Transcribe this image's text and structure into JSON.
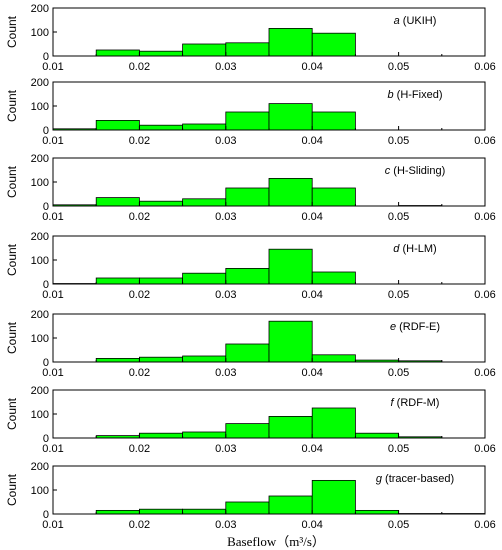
{
  "figure": {
    "xlabel": "Baseflow（m³/s）",
    "bar_color": "#00ff00",
    "edge_color": "#000000"
  },
  "chart_data": [
    {
      "type": "bar",
      "panel_letter": "a",
      "label_rest": " (UKIH)",
      "ylabel": "Count",
      "bin_edges": [
        0.015,
        0.02,
        0.025,
        0.03,
        0.035,
        0.04,
        0.045,
        0.05,
        0.055
      ],
      "values": [
        25,
        20,
        50,
        55,
        115,
        95,
        0,
        0
      ],
      "xlim": [
        0.01,
        0.06
      ],
      "ylim": [
        0,
        200
      ],
      "xticks": [
        "0.01",
        "0.02",
        "0.03",
        "0.04",
        "0.05",
        "0.06"
      ],
      "yticks": [
        "0",
        "100",
        "200"
      ]
    },
    {
      "type": "bar",
      "panel_letter": "b",
      "label_rest": " (H-Fixed)",
      "ylabel": "Count",
      "bin_edges": [
        0.01,
        0.015,
        0.02,
        0.025,
        0.03,
        0.035,
        0.04,
        0.045
      ],
      "values": [
        5,
        40,
        20,
        25,
        75,
        110,
        75
      ],
      "xlim": [
        0.01,
        0.06
      ],
      "ylim": [
        0,
        200
      ],
      "xticks": [
        "0.01",
        "0.02",
        "0.03",
        "0.04",
        "0.05",
        "0.06"
      ],
      "yticks": [
        "0",
        "100",
        "200"
      ]
    },
    {
      "type": "bar",
      "panel_letter": "c",
      "label_rest": " (H-Sliding)",
      "ylabel": "Count",
      "bin_edges": [
        0.01,
        0.015,
        0.02,
        0.025,
        0.03,
        0.035,
        0.04,
        0.045,
        0.05,
        0.055
      ],
      "values": [
        5,
        35,
        20,
        30,
        75,
        115,
        75,
        0,
        2
      ],
      "xlim": [
        0.01,
        0.06
      ],
      "ylim": [
        0,
        200
      ],
      "xticks": [
        "0.01",
        "0.02",
        "0.03",
        "0.04",
        "0.05",
        "0.06"
      ],
      "yticks": [
        "0",
        "100",
        "200"
      ]
    },
    {
      "type": "bar",
      "panel_letter": "d",
      "label_rest": " (H-LM)",
      "ylabel": "Count",
      "bin_edges": [
        0.01,
        0.015,
        0.02,
        0.025,
        0.03,
        0.035,
        0.04,
        0.045
      ],
      "values": [
        2,
        25,
        25,
        45,
        65,
        145,
        50
      ],
      "xlim": [
        0.01,
        0.06
      ],
      "ylim": [
        0,
        200
      ],
      "xticks": [
        "0.01",
        "0.02",
        "0.03",
        "0.04",
        "0.05",
        "0.06"
      ],
      "yticks": [
        "0",
        "100",
        "200"
      ]
    },
    {
      "type": "bar",
      "panel_letter": "e",
      "label_rest": " (RDF-E)",
      "ylabel": "Count",
      "bin_edges": [
        0.015,
        0.02,
        0.025,
        0.03,
        0.035,
        0.04,
        0.045,
        0.05,
        0.055
      ],
      "values": [
        15,
        20,
        25,
        75,
        170,
        30,
        8,
        5
      ],
      "xlim": [
        0.01,
        0.06
      ],
      "ylim": [
        0,
        200
      ],
      "xticks": [
        "0.01",
        "0.02",
        "0.03",
        "0.04",
        "0.05",
        "0.06"
      ],
      "yticks": [
        "0",
        "100",
        "200"
      ]
    },
    {
      "type": "bar",
      "panel_letter": "f",
      "label_rest": " (RDF-M)",
      "ylabel": "Count",
      "bin_edges": [
        0.015,
        0.02,
        0.025,
        0.03,
        0.035,
        0.04,
        0.045,
        0.05,
        0.055
      ],
      "values": [
        10,
        20,
        25,
        60,
        90,
        125,
        20,
        5
      ],
      "xlim": [
        0.01,
        0.06
      ],
      "ylim": [
        0,
        200
      ],
      "xticks": [
        "0.01",
        "0.02",
        "0.03",
        "0.04",
        "0.05",
        "0.06"
      ],
      "yticks": [
        "0",
        "100",
        "200"
      ]
    },
    {
      "type": "bar",
      "panel_letter": "g",
      "label_rest": " (tracer-based)",
      "ylabel": "Count",
      "bin_edges": [
        0.015,
        0.02,
        0.025,
        0.03,
        0.035,
        0.04,
        0.045,
        0.05,
        0.055,
        0.06
      ],
      "values": [
        15,
        20,
        20,
        50,
        75,
        140,
        15,
        2,
        2
      ],
      "xlim": [
        0.01,
        0.06
      ],
      "ylim": [
        0,
        200
      ],
      "xticks": [
        "0.01",
        "0.02",
        "0.03",
        "0.04",
        "0.05",
        "0.06"
      ],
      "yticks": [
        "0",
        "100",
        "200"
      ]
    }
  ]
}
